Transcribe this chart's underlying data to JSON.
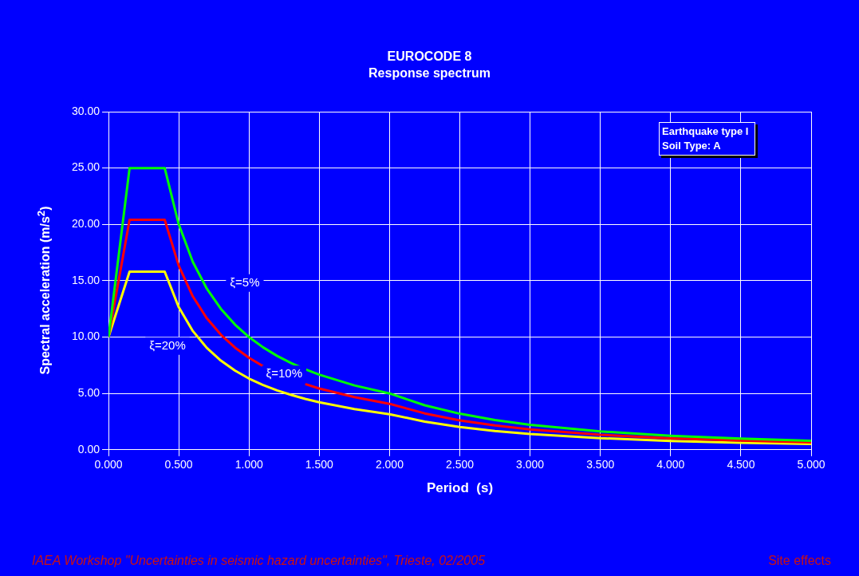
{
  "chart_data": {
    "type": "line",
    "title": "EUROCODE 8",
    "subtitle": "Response spectrum",
    "xlabel": "Period  (s)",
    "ylabel": "Spectral acceleration  (m/s$^{2}$)",
    "annotations": [
      "Earthquake type  I",
      "Soil Type:  A",
      "IAEA Workshop \"Uncertainties in seismic hazard uncertainties\", Trieste, 02/2005",
      "Site effects"
    ],
    "x": [
      0,
      0.15,
      0.4,
      0.5,
      0.6,
      0.7,
      0.8,
      0.9,
      1.0,
      1.1,
      1.2,
      1.3,
      1.4,
      1.5,
      1.75,
      2.0,
      2.25,
      2.5,
      2.75,
      3.0,
      3.5,
      4.0,
      4.5,
      5.0
    ],
    "series": [
      {
        "name": "ξ=5%",
        "color": "#00ff00",
        "values": [
          10,
          25,
          25,
          20,
          16.67,
          14.29,
          12.5,
          11.11,
          10,
          9.09,
          8.33,
          7.69,
          7.14,
          6.67,
          5.71,
          5,
          3.95,
          3.2,
          2.64,
          2.22,
          1.63,
          1.25,
          0.99,
          0.8
        ]
      },
      {
        "name": "ξ=10%",
        "color": "#ff0000",
        "values": [
          10,
          20.41,
          20.41,
          16.33,
          13.61,
          11.66,
          10.21,
          9.07,
          8.16,
          7.42,
          null,
          null,
          5.83,
          5.44,
          4.67,
          4.08,
          3.23,
          2.61,
          2.16,
          1.81,
          1.33,
          1.02,
          0.81,
          0.65
        ]
      },
      {
        "name": "ξ=20%",
        "color": "#ffff00",
        "values": [
          10,
          15.81,
          15.81,
          12.65,
          10.54,
          9.04,
          7.91,
          7.03,
          6.32,
          5.75,
          5.27,
          4.87,
          4.52,
          4.22,
          3.61,
          3.16,
          2.5,
          2.02,
          1.67,
          1.41,
          1.03,
          0.79,
          0.62,
          0.51
        ]
      }
    ],
    "xlim": [
      0,
      5
    ],
    "xticks": [
      {
        "value": 0,
        "label": "0.000"
      },
      {
        "value": 0.5,
        "label": "0.500"
      },
      {
        "value": 1,
        "label": "1.000"
      },
      {
        "value": 1.5,
        "label": "1.500"
      },
      {
        "value": 2,
        "label": "2.000"
      },
      {
        "value": 2.5,
        "label": "2.500"
      },
      {
        "value": 3,
        "label": "3.000"
      },
      {
        "value": 3.5,
        "label": "3.500"
      },
      {
        "value": 4,
        "label": "4.000"
      },
      {
        "value": 4.5,
        "label": "4.500"
      },
      {
        "value": 5,
        "label": "5.000"
      }
    ],
    "ylim": [
      0,
      30
    ],
    "yticks": [
      {
        "value": 0,
        "label": "0.00"
      },
      {
        "value": 5,
        "label": "5.00"
      },
      {
        "value": 10,
        "label": "10.00"
      },
      {
        "value": 15,
        "label": "15.00"
      },
      {
        "value": 20,
        "label": "20.00"
      },
      {
        "value": 25,
        "label": "25.00"
      },
      {
        "value": 30,
        "label": "30.00"
      }
    ],
    "grid": true,
    "legend": false,
    "marker": "none",
    "line_style": "solid"
  }
}
